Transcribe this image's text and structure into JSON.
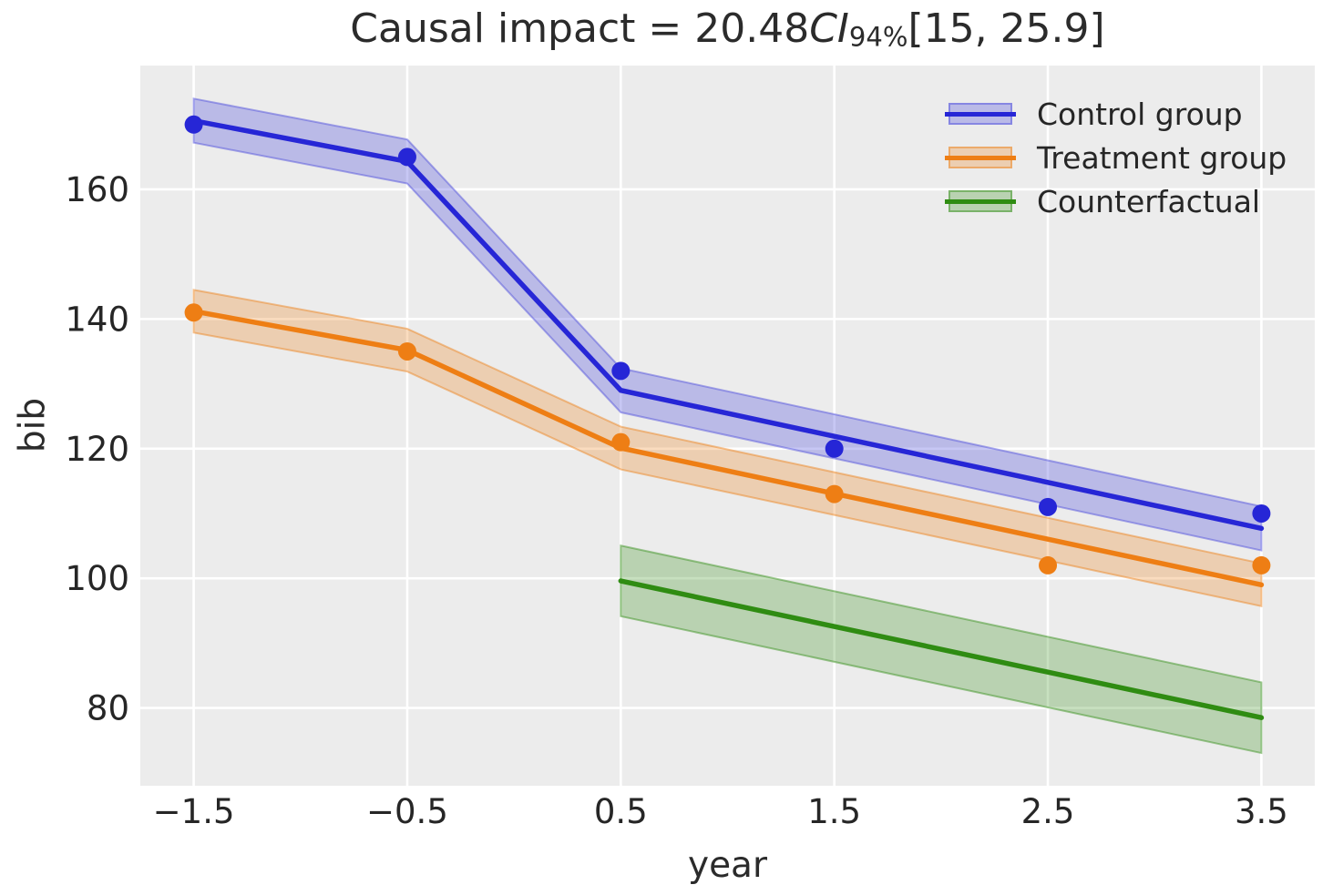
{
  "chart_data": {
    "type": "line",
    "title_parts": {
      "prefix": "Causal impact = 20.48",
      "ci_italic": "CI",
      "ci_subscript": "94%",
      "suffix": "[15, 25.9]"
    },
    "title_plain": "Causal impact = 20.48 CI 94% [15, 25.9]",
    "xlabel": "year",
    "ylabel": "bib",
    "xlim": [
      -1.75,
      3.75
    ],
    "ylim": [
      68,
      179.1
    ],
    "xticks": [
      -1.5,
      -0.5,
      0.5,
      1.5,
      2.5,
      3.5
    ],
    "xtick_labels": [
      "−1.5",
      "−0.5",
      "0.5",
      "1.5",
      "2.5",
      "3.5"
    ],
    "yticks": [
      80,
      100,
      120,
      140,
      160
    ],
    "ytick_labels": [
      "80",
      "100",
      "120",
      "140",
      "160"
    ],
    "grid": true,
    "plot_background": "#ececec",
    "grid_color": "#ffffff",
    "legend_position": "upper right",
    "series": [
      {
        "name": "Control group",
        "color": "#2626d6",
        "band_fill": "rgba(70,70,220,0.30)",
        "band_edge": "rgba(70,70,220,0.45)",
        "scatter_x": [
          -1.5,
          -0.5,
          0.5,
          1.5,
          2.5,
          3.5
        ],
        "scatter_y": [
          170,
          165,
          132,
          120,
          111,
          110
        ],
        "trend_x": [
          -1.5,
          -0.5,
          0.5,
          3.5
        ],
        "trend_y": [
          170.6,
          164.3,
          129.0,
          107.7
        ],
        "band_halfwidth": 3.4
      },
      {
        "name": "Treatment group",
        "color": "#ee7e14",
        "band_fill": "rgba(238,126,20,0.27)",
        "band_edge": "rgba(238,126,20,0.45)",
        "scatter_x": [
          -1.5,
          -0.5,
          0.5,
          1.5,
          2.5,
          3.5
        ],
        "scatter_y": [
          141,
          135,
          121,
          113,
          102,
          102
        ],
        "trend_x": [
          -1.5,
          -0.5,
          0.5,
          3.5
        ],
        "trend_y": [
          141.2,
          135.2,
          120.1,
          99.0
        ],
        "band_halfwidth": 3.3
      },
      {
        "name": "Counterfactual",
        "color": "#2f8c12",
        "band_fill": "rgba(47,140,18,0.27)",
        "band_edge": "rgba(47,140,18,0.45)",
        "scatter_x": [],
        "scatter_y": [],
        "trend_x": [
          0.5,
          3.5
        ],
        "trend_y": [
          99.6,
          78.5
        ],
        "band_halfwidth": 5.45
      }
    ]
  }
}
